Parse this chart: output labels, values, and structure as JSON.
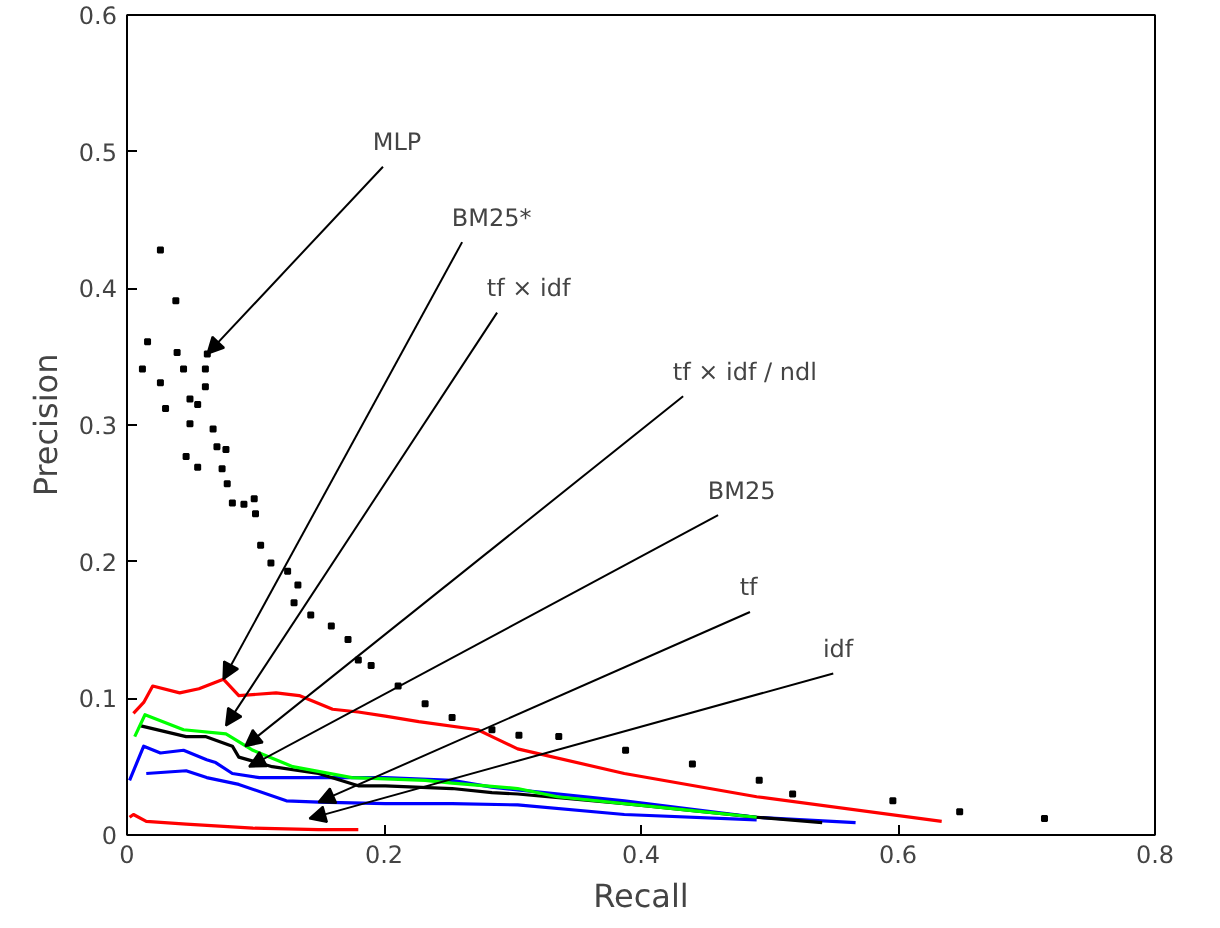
{
  "chart_data": {
    "type": "line",
    "xlabel": "Recall",
    "ylabel": "Precision",
    "xlim": [
      0,
      0.8
    ],
    "ylim": [
      0,
      0.6
    ],
    "xticks": [
      0,
      0.2,
      0.4,
      0.6,
      0.8
    ],
    "yticks": [
      0,
      0.1,
      0.2,
      0.3,
      0.4,
      0.5,
      0.6
    ],
    "grid": false,
    "series": [
      {
        "type": "scatter",
        "marker": "square",
        "color": "#000000",
        "x": [
          0.012,
          0.016,
          0.026,
          0.026,
          0.03,
          0.038,
          0.039,
          0.044,
          0.046,
          0.049,
          0.049,
          0.055,
          0.055,
          0.061,
          0.061,
          0.0625,
          0.067,
          0.07,
          0.074,
          0.077,
          0.078,
          0.082,
          0.091,
          0.099,
          0.1,
          0.104,
          0.112,
          0.125,
          0.13,
          0.133,
          0.143,
          0.159,
          0.172,
          0.18,
          0.19,
          0.211,
          0.232,
          0.253,
          0.284,
          0.305,
          0.336,
          0.388,
          0.44,
          0.492,
          0.518,
          0.596,
          0.648,
          0.714
        ],
        "values": [
          0.341,
          0.361,
          0.428,
          0.331,
          0.312,
          0.391,
          0.353,
          0.341,
          0.277,
          0.319,
          0.301,
          0.315,
          0.269,
          0.341,
          0.328,
          0.352,
          0.297,
          0.284,
          0.268,
          0.282,
          0.257,
          0.243,
          0.242,
          0.246,
          0.235,
          0.212,
          0.199,
          0.193,
          0.17,
          0.183,
          0.161,
          0.153,
          0.143,
          0.128,
          0.124,
          0.109,
          0.096,
          0.086,
          0.077,
          0.073,
          0.072,
          0.062,
          0.052,
          0.04,
          0.03,
          0.025,
          0.017,
          0.012
        ]
      },
      {
        "color": "#ff0000",
        "x": [
          0.005,
          0.013,
          0.02,
          0.041,
          0.056,
          0.075,
          0.087,
          0.116,
          0.134,
          0.16,
          0.18,
          0.201,
          0.227,
          0.273,
          0.284,
          0.304,
          0.387,
          0.49,
          0.634
        ],
        "values": [
          0.089,
          0.097,
          0.109,
          0.104,
          0.107,
          0.114,
          0.102,
          0.104,
          0.102,
          0.092,
          0.09,
          0.087,
          0.083,
          0.077,
          0.072,
          0.063,
          0.045,
          0.028,
          0.01
        ]
      },
      {
        "color": "#00ff00",
        "x": [
          0.006,
          0.014,
          0.044,
          0.077,
          0.098,
          0.129,
          0.175,
          0.232,
          0.253,
          0.304,
          0.335,
          0.438,
          0.49
        ],
        "values": [
          0.072,
          0.088,
          0.077,
          0.074,
          0.062,
          0.05,
          0.042,
          0.04,
          0.038,
          0.034,
          0.028,
          0.018,
          0.013
        ]
      },
      {
        "color": "#000000",
        "x": [
          0.01,
          0.046,
          0.061,
          0.082,
          0.087,
          0.113,
          0.149,
          0.18,
          0.201,
          0.253,
          0.284,
          0.304,
          0.387,
          0.49,
          0.541
        ],
        "values": [
          0.08,
          0.072,
          0.072,
          0.065,
          0.057,
          0.05,
          0.045,
          0.036,
          0.036,
          0.034,
          0.031,
          0.03,
          0.023,
          0.013,
          0.009
        ]
      },
      {
        "color": "#0000ff",
        "x": [
          0.002,
          0.013,
          0.026,
          0.044,
          0.062,
          0.069,
          0.082,
          0.103,
          0.149,
          0.201,
          0.253,
          0.284,
          0.304,
          0.387,
          0.49,
          0.567
        ],
        "values": [
          0.04,
          0.065,
          0.06,
          0.062,
          0.055,
          0.053,
          0.045,
          0.042,
          0.042,
          0.042,
          0.04,
          0.035,
          0.033,
          0.025,
          0.013,
          0.009
        ]
      },
      {
        "color": "#0000ff",
        "x": [
          0.015,
          0.046,
          0.062,
          0.087,
          0.124,
          0.149,
          0.201,
          0.253,
          0.304,
          0.387,
          0.49
        ],
        "values": [
          0.045,
          0.047,
          0.042,
          0.037,
          0.025,
          0.024,
          0.023,
          0.023,
          0.022,
          0.015,
          0.011
        ]
      },
      {
        "color": "#ff0000",
        "x": [
          0.002,
          0.005,
          0.015,
          0.046,
          0.098,
          0.149,
          0.18
        ],
        "values": [
          0.013,
          0.015,
          0.01,
          0.008,
          0.005,
          0.004,
          0.004
        ]
      }
    ],
    "annotations": [
      {
        "text": "MLP",
        "x": 0.0625,
        "y": 0.352
      },
      {
        "text": "BM25*",
        "x": 0.075,
        "y": 0.114
      },
      {
        "text": "tf × idf",
        "x": 0.077,
        "y": 0.08
      },
      {
        "text": "tf × idf / ndl",
        "x": 0.092,
        "y": 0.065
      },
      {
        "text": "BM25",
        "x": 0.095,
        "y": 0.05
      },
      {
        "text": "tf",
        "x": 0.149,
        "y": 0.024
      },
      {
        "text": "idf",
        "x": 0.142,
        "y": 0.012
      }
    ]
  }
}
